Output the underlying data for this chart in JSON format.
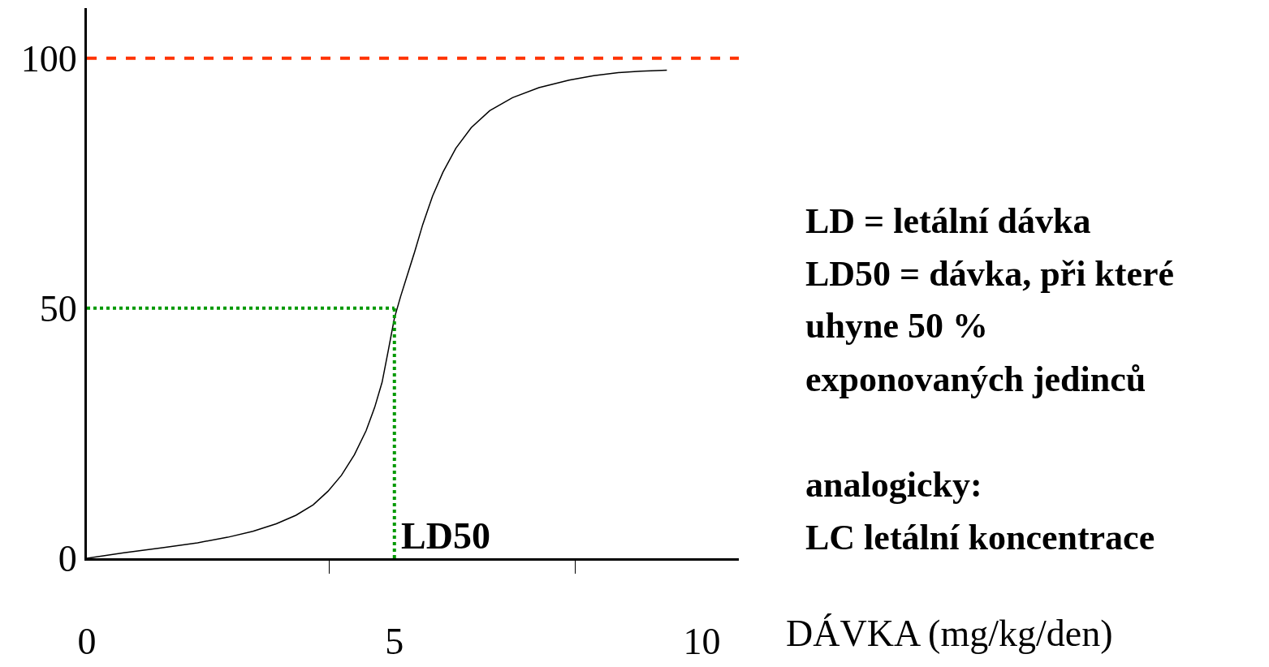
{
  "chart_data": {
    "type": "line",
    "xlabel": "DÁVKA (mg/kg/den)",
    "x": [
      0,
      0.6,
      1.23,
      1.8,
      2.29,
      2.7,
      3.08,
      3.4,
      3.68,
      3.92,
      4.14,
      4.35,
      4.54,
      4.68,
      4.8,
      4.9,
      5.0,
      5.1,
      5.2,
      5.33,
      5.46,
      5.62,
      5.79,
      6.0,
      6.25,
      6.55,
      6.92,
      7.35,
      7.84,
      8.24,
      8.64,
      9.0,
      9.43
    ],
    "series": [
      {
        "color": "#000000",
        "values": [
          0,
          1.1,
          2.1,
          3.1,
          4.2,
          5.4,
          6.9,
          8.6,
          10.7,
          13.4,
          16.6,
          20.7,
          25.5,
          30.2,
          35.2,
          41.5,
          48,
          52.3,
          56.2,
          61.3,
          66.7,
          72.4,
          77.2,
          82,
          86.1,
          89.5,
          92.1,
          94.1,
          95.6,
          96.5,
          97.1,
          97.4,
          97.6
        ]
      }
    ],
    "xlim": [
      0,
      10.6
    ],
    "ylim": [
      0,
      110
    ],
    "xticks": [
      0,
      {
        "value": 3.94,
        "label": null
      },
      5,
      {
        "value": 7.94,
        "label": null
      },
      10
    ],
    "yticks": [
      0,
      50,
      100
    ],
    "grid": false,
    "marker": "none",
    "line_style": "solid",
    "ref_lines": [
      {
        "axis": "y",
        "value": 100,
        "label": null,
        "color": "#ff3300",
        "line_style": "dashed"
      },
      {
        "axis": "y",
        "value": 50,
        "label": null,
        "color": "#009900",
        "line_style": "dotted"
      },
      {
        "axis": "x",
        "value": 5,
        "label": "LD50",
        "color": "#009900",
        "line_style": "dotted"
      }
    ],
    "annotations": [
      "LD = letální dávka",
      "LD50 = dávka, při které",
      "uhyne 50 %",
      "exponovaných jedinců",
      "analogicky:",
      "LC letální koncentrace"
    ]
  }
}
